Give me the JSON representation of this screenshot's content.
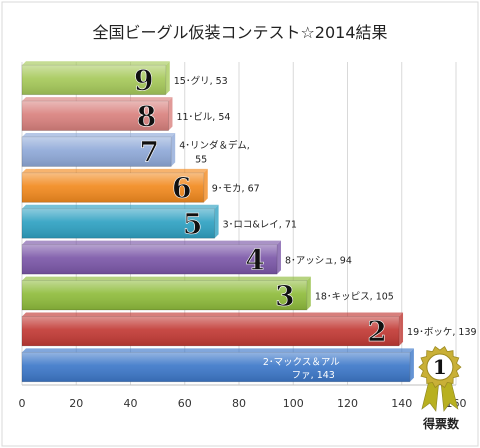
{
  "chart_data": {
    "type": "bar",
    "orientation": "horizontal",
    "title": "全国ビーグル仮装コンテスト☆2014結果",
    "xlabel": "得票数",
    "ylabel": "",
    "xlim": [
      0,
      160
    ],
    "xticks": [
      "0",
      "20",
      "40",
      "60",
      "80",
      "100",
      "120",
      "140",
      "160"
    ],
    "grid": true,
    "legend": "none",
    "bars": [
      {
        "rank": "9",
        "label": "15･グリ, 53",
        "value": 53,
        "color": "#a6c95a"
      },
      {
        "rank": "8",
        "label": "11･ビル, 54",
        "value": 54,
        "color": "#d9817e"
      },
      {
        "rank": "7",
        "label": "4･リンダ＆デム,",
        "label2": "55",
        "value": 55,
        "color": "#8fa9d8"
      },
      {
        "rank": "6",
        "label": "9･モカ, 67",
        "value": 67,
        "color": "#f28a1f"
      },
      {
        "rank": "5",
        "label": "3･ロコ&レイ, 71",
        "value": 71,
        "color": "#2fa1c2"
      },
      {
        "rank": "4",
        "label": "8･アッシュ, 94",
        "value": 94,
        "color": "#7b57a8"
      },
      {
        "rank": "3",
        "label": "18･キッピス, 105",
        "value": 105,
        "color": "#8fbc3c"
      },
      {
        "rank": "2",
        "label": "19･ボッケ, 139",
        "value": 139,
        "color": "#c23a35"
      },
      {
        "rank": "1",
        "label": "2･マックス＆アル",
        "label2": "ファ, 143",
        "value": 143,
        "color": "#3d78c9"
      }
    ],
    "medal_colors": {
      "medal": "#c9b037",
      "ribbon": "#b8b020"
    }
  }
}
